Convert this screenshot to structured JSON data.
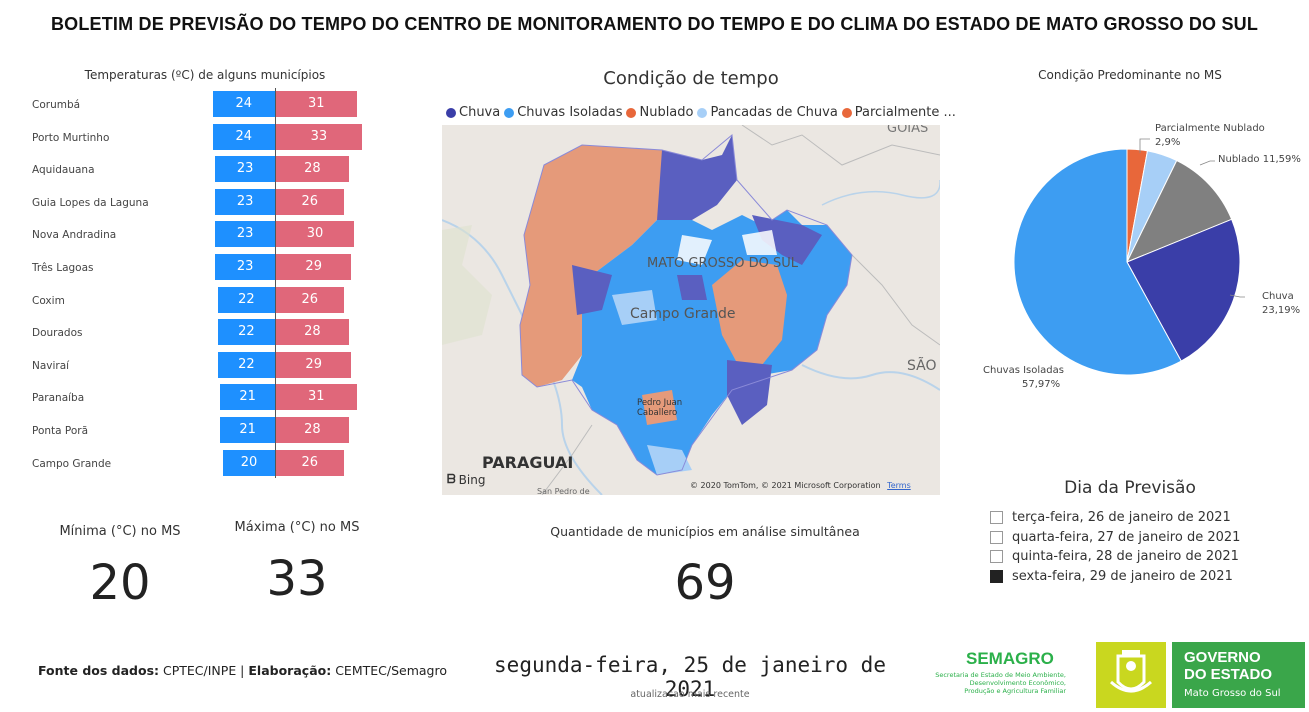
{
  "title": "BOLETIM DE PREVISÃO DO TEMPO DO CENTRO DE MONITORAMENTO DO TEMPO E DO CLIMA DO ESTADO DE MATO GROSSO DO SUL",
  "temps": {
    "title": "Temperaturas (ºC) de alguns municípios",
    "rows": [
      {
        "city": "Corumbá",
        "min": "24",
        "max": "31"
      },
      {
        "city": "Porto Murtinho",
        "min": "24",
        "max": "33"
      },
      {
        "city": "Aquidauana",
        "min": "23",
        "max": "28"
      },
      {
        "city": "Guia Lopes da Laguna",
        "min": "23",
        "max": "26"
      },
      {
        "city": "Nova Andradina",
        "min": "23",
        "max": "30"
      },
      {
        "city": "Três Lagoas",
        "min": "23",
        "max": "29"
      },
      {
        "city": "Coxim",
        "min": "22",
        "max": "26"
      },
      {
        "city": "Dourados",
        "min": "22",
        "max": "28"
      },
      {
        "city": "Naviraí",
        "min": "22",
        "max": "29"
      },
      {
        "city": "Paranaíba",
        "min": "21",
        "max": "31"
      },
      {
        "city": "Ponta Porã",
        "min": "21",
        "max": "28"
      },
      {
        "city": "Campo Grande",
        "min": "20",
        "max": "26"
      }
    ],
    "min_color": "#1e90ff",
    "max_color": "#e0677a"
  },
  "kpi": {
    "min_label": "Mínima (°C) no MS",
    "min_value": "20",
    "max_label": "Máxima (°C) no MS",
    "max_value": "33"
  },
  "map": {
    "title": "Condição de tempo",
    "legend": [
      {
        "label": "Chuva",
        "color": "#3a3ea8"
      },
      {
        "label": "Chuvas Isoladas",
        "color": "#3d9df2"
      },
      {
        "label": "Nublado",
        "color": "#e8673a"
      },
      {
        "label": "Pancadas de Chuva",
        "color": "#a7cff7"
      },
      {
        "label": "Parcialmente ...",
        "color": "#e8673a"
      }
    ],
    "labels": {
      "state": "MATO GROSSO DO SUL",
      "capital": "Campo Grande",
      "city": "Pedro Juan Caballero",
      "country": "PARAGUAI",
      "goias": "GOIÁS",
      "sao": "SÃO",
      "sanpedro": "San Pedro de",
      "bing": "Bing",
      "copyright": "© 2020 TomTom, © 2021 Microsoft Corporation",
      "terms": "Terms"
    }
  },
  "pie": {
    "title": "Condição Predominante no MS",
    "labels": {
      "parcial_1": "Parcialmente Nublado",
      "parcial_2": "2,9%",
      "nublado": "Nublado 11,59%",
      "chuva_1": "Chuva",
      "chuva_2": "23,19%",
      "isoladas_1": "Chuvas Isoladas",
      "isoladas_2": "57,97%"
    }
  },
  "chart_data": {
    "type": "pie",
    "title": "Condição Predominante no MS",
    "slices": [
      {
        "name": "Parcialmente Nublado",
        "value": 2.9,
        "color": "#e8673a"
      },
      {
        "name": "Pancadas de Chuva",
        "value": 4.35,
        "color": "#a7cff7"
      },
      {
        "name": "Nublado",
        "value": 11.59,
        "color": "#808080"
      },
      {
        "name": "Chuva",
        "value": 23.19,
        "color": "#3a3ea8"
      },
      {
        "name": "Chuvas Isoladas",
        "value": 57.97,
        "color": "#3d9df2"
      }
    ]
  },
  "forecast": {
    "title": "Dia da Previsão",
    "options": [
      {
        "label": "terça-feira, 26 de janeiro de 2021",
        "selected": false
      },
      {
        "label": "quarta-feira, 27 de janeiro de 2021",
        "selected": false
      },
      {
        "label": "quinta-feira, 28 de janeiro de 2021",
        "selected": false
      },
      {
        "label": "sexta-feira, 29 de janeiro de 2021",
        "selected": true
      }
    ]
  },
  "qty": {
    "label": "Quantidade de municípios em análise simultânea",
    "value": "69"
  },
  "footer": {
    "source_label": "Fonte dos dados:",
    "source_value": "CPTEC/INPE |",
    "elab_label": "Elaboração:",
    "elab_value": "CEMTEC/Semagro",
    "date": "segunda-feira, 25 de janeiro de 2021",
    "date_sub": "atualizacao mais recente"
  },
  "logos": {
    "semagro": "SEMAGRO",
    "semagro_sub1": "Secretaria de Estado de Meio Ambiente,",
    "semagro_sub2": "Desenvolvimento Econômico,",
    "semagro_sub3": "Produção e Agricultura Familiar",
    "gov1": "GOVERNO",
    "gov2": "DO ESTADO",
    "gov3": "Mato Grosso do Sul"
  }
}
